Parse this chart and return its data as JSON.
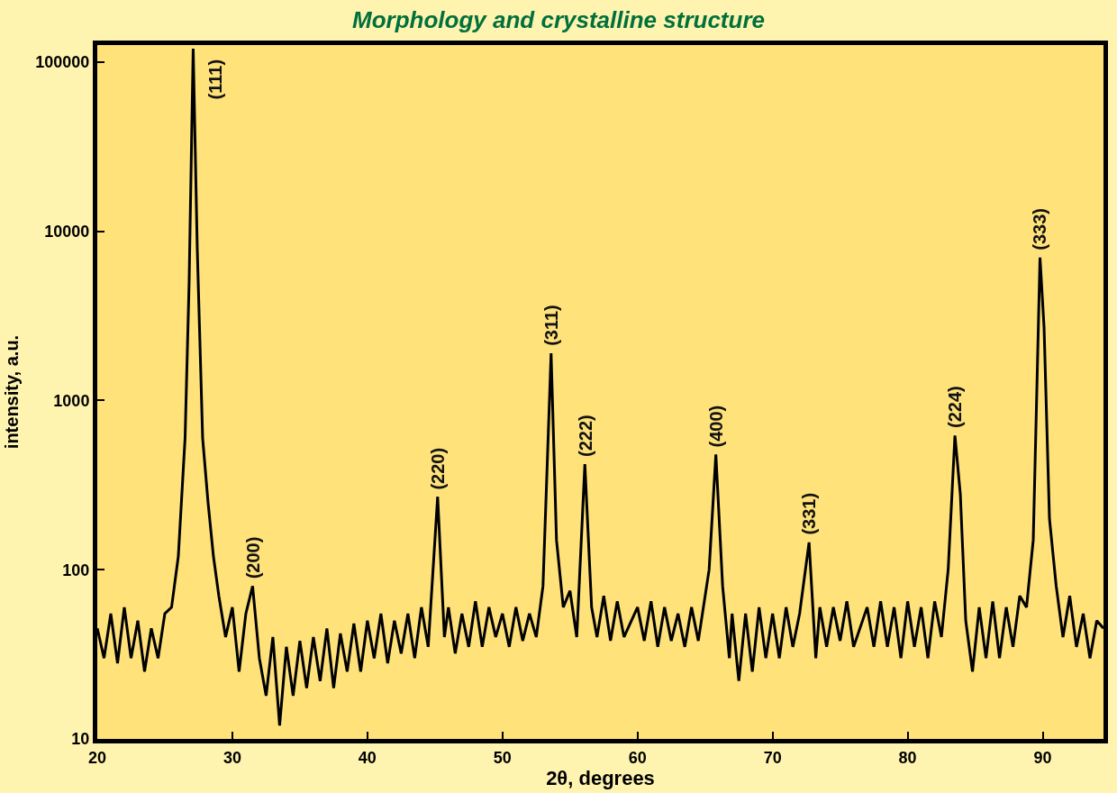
{
  "chart_data": {
    "type": "line",
    "title": "Morphology and crystalline structure",
    "xlabel": "2θ, degrees",
    "ylabel": "intensity, a.u.",
    "log": "y",
    "grid": false,
    "marker": "none",
    "line_style": "solid",
    "xlim": [
      20,
      94.5
    ],
    "xticks": [
      20,
      30,
      40,
      50,
      60,
      70,
      80,
      90
    ],
    "ylim": [
      10,
      126000
    ],
    "yticks": [
      10,
      100,
      1000,
      10000,
      100000
    ],
    "x": [
      20,
      20.5,
      21,
      21.5,
      22,
      22.5,
      23,
      23.5,
      24,
      24.5,
      25,
      25.5,
      26,
      26.5,
      26.8,
      27.1,
      27.4,
      27.8,
      28.2,
      28.6,
      29,
      29.5,
      30,
      30.5,
      31,
      31.5,
      32,
      32.5,
      33,
      33.5,
      34,
      34.5,
      35,
      35.5,
      36,
      36.5,
      37,
      37.5,
      38,
      38.5,
      39,
      39.5,
      40,
      40.5,
      41,
      41.5,
      42,
      42.5,
      43,
      43.5,
      44,
      44.5,
      45.2,
      45.7,
      46,
      46.5,
      47,
      47.5,
      48,
      48.5,
      49,
      49.5,
      50,
      50.5,
      51,
      51.5,
      52,
      52.5,
      53,
      53.6,
      54,
      54.5,
      55,
      55.5,
      56.1,
      56.6,
      57,
      57.5,
      58,
      58.5,
      59,
      60,
      60.5,
      61,
      61.5,
      62,
      62.5,
      63,
      63.5,
      64,
      64.5,
      65.3,
      65.8,
      66.3,
      66.8,
      67,
      67.5,
      68,
      68.5,
      69,
      69.5,
      70,
      70.5,
      71,
      71.5,
      72,
      72.7,
      73.2,
      73.5,
      74,
      74.5,
      75,
      75.5,
      76,
      77,
      77.5,
      78,
      78.5,
      79,
      79.5,
      80,
      80.5,
      81,
      81.5,
      82,
      82.5,
      83,
      83.5,
      83.9,
      84.3,
      84.8,
      85.3,
      85.8,
      86.3,
      86.8,
      87.3,
      87.8,
      88.3,
      88.8,
      89.3,
      89.8,
      90.1,
      90.5,
      91,
      91.5,
      92,
      92.5,
      93,
      93.5,
      94,
      94.5
    ],
    "series": [
      {
        "color": "#000000",
        "values": [
          45,
          30,
          55,
          28,
          60,
          30,
          50,
          25,
          45,
          30,
          55,
          60,
          120,
          600,
          5000,
          120000,
          8000,
          600,
          250,
          120,
          70,
          40,
          60,
          25,
          55,
          80,
          30,
          18,
          40,
          12,
          35,
          18,
          38,
          20,
          40,
          22,
          45,
          20,
          42,
          25,
          48,
          25,
          50,
          30,
          55,
          28,
          50,
          32,
          55,
          30,
          60,
          35,
          270,
          40,
          60,
          32,
          55,
          35,
          65,
          35,
          60,
          40,
          55,
          35,
          60,
          38,
          55,
          40,
          80,
          1900,
          150,
          60,
          75,
          40,
          420,
          60,
          40,
          70,
          38,
          65,
          40,
          60,
          38,
          65,
          35,
          60,
          38,
          55,
          35,
          60,
          38,
          100,
          480,
          80,
          30,
          55,
          22,
          55,
          25,
          60,
          30,
          55,
          30,
          60,
          35,
          55,
          145,
          30,
          60,
          35,
          60,
          38,
          65,
          35,
          60,
          35,
          65,
          35,
          60,
          30,
          65,
          35,
          60,
          30,
          65,
          40,
          100,
          620,
          280,
          50,
          25,
          60,
          30,
          65,
          30,
          60,
          35,
          70,
          60,
          150,
          7000,
          2700,
          200,
          80,
          40,
          70,
          35,
          55,
          30,
          50,
          45
        ]
      }
    ],
    "annotations": [
      {
        "text": "(111)",
        "x": 27.1,
        "y": 120000
      },
      {
        "text": "(200)",
        "x": 31.5,
        "y": 80
      },
      {
        "text": "(220)",
        "x": 45.2,
        "y": 270
      },
      {
        "text": "(311)",
        "x": 53.6,
        "y": 1900
      },
      {
        "text": "(222)",
        "x": 56.1,
        "y": 420
      },
      {
        "text": "(400)",
        "x": 65.8,
        "y": 480
      },
      {
        "text": "(331)",
        "x": 72.7,
        "y": 145
      },
      {
        "text": "(224)",
        "x": 83.5,
        "y": 620
      },
      {
        "text": "(333)",
        "x": 89.8,
        "y": 7000
      }
    ]
  }
}
